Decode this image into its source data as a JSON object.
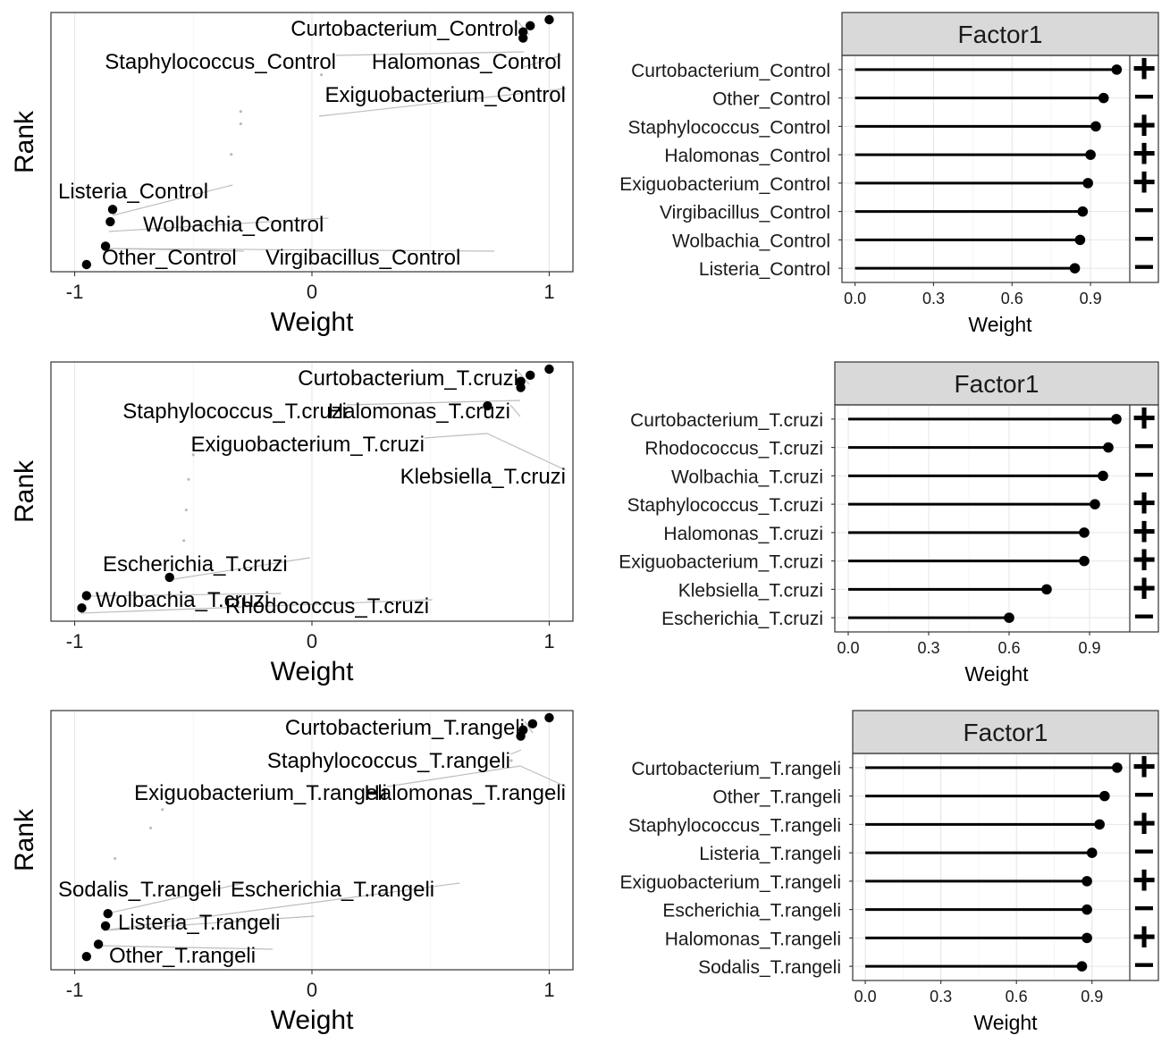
{
  "chart_data": [
    {
      "type": "scatter",
      "xlabel": "Weight",
      "ylabel": "Rank",
      "xlim": [
        -1.1,
        1.1
      ],
      "xticks": [
        "-1",
        "0",
        "1"
      ],
      "points": [
        {
          "weight": 1.0,
          "rank": 40
        },
        {
          "weight": 0.92,
          "rank": 39
        },
        {
          "weight": 0.89,
          "rank": 38
        },
        {
          "weight": 0.89,
          "rank": 37
        },
        {
          "weight": 0.04,
          "rank": 31
        },
        {
          "weight": -0.3,
          "rank": 25
        },
        {
          "weight": -0.3,
          "rank": 23
        },
        {
          "weight": -0.34,
          "rank": 18
        },
        {
          "weight": -0.84,
          "rank": 9
        },
        {
          "weight": -0.85,
          "rank": 7
        },
        {
          "weight": -0.87,
          "rank": 3
        },
        {
          "weight": -0.95,
          "rank": 0
        }
      ],
      "labels": [
        {
          "text": "Curtobacterium_Control",
          "weight": 0.92,
          "rank": 39
        },
        {
          "text": "Staphylococcus_Control",
          "weight": 0.89,
          "rank": 38
        },
        {
          "text": "Halomonas_Control",
          "weight": 0.89,
          "rank": 37
        },
        {
          "text": "Exiguobacterium_Control",
          "weight": 0.04,
          "rank": 31
        },
        {
          "text": "Listeria_Control",
          "weight": -0.84,
          "rank": 9
        },
        {
          "text": "Wolbachia_Control",
          "weight": -0.85,
          "rank": 7
        },
        {
          "text": "Other_Control",
          "weight": -0.87,
          "rank": 3
        },
        {
          "text": "Virgibacillus_Control",
          "weight": -0.87,
          "rank": 3
        }
      ]
    },
    {
      "type": "bar",
      "strip": "Factor1",
      "xlabel": "Weight",
      "xlim": [
        0,
        1.0
      ],
      "xticks": [
        0.0,
        0.3,
        0.6,
        0.9
      ],
      "xtick_labels": [
        "0.0",
        "0.3",
        "0.6",
        "0.9"
      ],
      "categories": [
        "Curtobacterium_Control",
        "Other_Control",
        "Staphylococcus_Control",
        "Halomonas_Control",
        "Exiguobacterium_Control",
        "Virgibacillus_Control",
        "Wolbachia_Control",
        "Listeria_Control"
      ],
      "values": [
        1.0,
        0.95,
        0.92,
        0.9,
        0.89,
        0.87,
        0.86,
        0.84
      ],
      "signs": [
        "+",
        "−",
        "+",
        "+",
        "+",
        "−",
        "−",
        "−"
      ]
    },
    {
      "type": "scatter",
      "xlabel": "Weight",
      "ylabel": "Rank",
      "xlim": [
        -1.1,
        1.1
      ],
      "xticks": [
        "-1",
        "0",
        "1"
      ],
      "points": [
        {
          "weight": 1.0,
          "rank": 40
        },
        {
          "weight": 0.92,
          "rank": 39
        },
        {
          "weight": 0.88,
          "rank": 38
        },
        {
          "weight": 0.88,
          "rank": 37
        },
        {
          "weight": 0.74,
          "rank": 34
        },
        {
          "weight": -0.5,
          "rank": 26
        },
        {
          "weight": -0.52,
          "rank": 22
        },
        {
          "weight": -0.53,
          "rank": 17
        },
        {
          "weight": -0.54,
          "rank": 12
        },
        {
          "weight": -0.6,
          "rank": 6
        },
        {
          "weight": -0.95,
          "rank": 3
        },
        {
          "weight": -0.97,
          "rank": 1
        }
      ],
      "labels": [
        {
          "text": "Curtobacterium_T.cruzi",
          "weight": 0.92,
          "rank": 39
        },
        {
          "text": "Staphylococcus_T.cruzi",
          "weight": 0.88,
          "rank": 38
        },
        {
          "text": "Halomonas_T.cruzi",
          "weight": 0.88,
          "rank": 37
        },
        {
          "text": "Exiguobacterium_T.cruzi",
          "weight": 0.74,
          "rank": 34
        },
        {
          "text": "Klebsiella_T.cruzi",
          "weight": 0.74,
          "rank": 34
        },
        {
          "text": "Escherichia_T.cruzi",
          "weight": -0.6,
          "rank": 6
        },
        {
          "text": "Wolbachia_T.cruzi",
          "weight": -0.95,
          "rank": 3
        },
        {
          "text": "Rhodococcus_T.cruzi",
          "weight": -0.97,
          "rank": 1
        }
      ]
    },
    {
      "type": "bar",
      "strip": "Factor1",
      "xlabel": "Weight",
      "xlim": [
        0,
        1.0
      ],
      "xticks": [
        0.0,
        0.3,
        0.6,
        0.9
      ],
      "xtick_labels": [
        "0.0",
        "0.3",
        "0.6",
        "0.9"
      ],
      "categories": [
        "Curtobacterium_T.cruzi",
        "Rhodococcus_T.cruzi",
        "Wolbachia_T.cruzi",
        "Staphylococcus_T.cruzi",
        "Halomonas_T.cruzi",
        "Exiguobacterium_T.cruzi",
        "Klebsiella_T.cruzi",
        "Escherichia_T.cruzi"
      ],
      "values": [
        1.0,
        0.97,
        0.95,
        0.92,
        0.88,
        0.88,
        0.74,
        0.6
      ],
      "signs": [
        "+",
        "−",
        "−",
        "+",
        "+",
        "+",
        "+",
        "−"
      ]
    },
    {
      "type": "scatter",
      "xlabel": "Weight",
      "ylabel": "Rank",
      "xlim": [
        -1.1,
        1.1
      ],
      "xticks": [
        "-1",
        "0",
        "1"
      ],
      "points": [
        {
          "weight": 1.0,
          "rank": 40
        },
        {
          "weight": 0.93,
          "rank": 39
        },
        {
          "weight": 0.89,
          "rank": 38
        },
        {
          "weight": 0.88,
          "rank": 37
        },
        {
          "weight": 0.84,
          "rank": 33
        },
        {
          "weight": -0.43,
          "rank": 27
        },
        {
          "weight": -0.63,
          "rank": 25
        },
        {
          "weight": -0.68,
          "rank": 22
        },
        {
          "weight": -0.83,
          "rank": 17
        },
        {
          "weight": -0.86,
          "rank": 8
        },
        {
          "weight": -0.87,
          "rank": 6
        },
        {
          "weight": -0.9,
          "rank": 3
        },
        {
          "weight": -0.95,
          "rank": 1
        }
      ],
      "labels": [
        {
          "text": "Curtobacterium_T.rangeli",
          "weight": 0.93,
          "rank": 39
        },
        {
          "text": "Staphylococcus_T.rangeli",
          "weight": 0.89,
          "rank": 38
        },
        {
          "text": "Exiguobacterium_T.rangeli",
          "weight": 0.88,
          "rank": 37
        },
        {
          "text": "Halomonas_T.rangeli",
          "weight": 0.88,
          "rank": 37
        },
        {
          "text": "Sodalis_T.rangeli",
          "weight": -0.86,
          "rank": 8
        },
        {
          "text": "Escherichia_T.rangeli",
          "weight": -0.87,
          "rank": 6
        },
        {
          "text": "Listeria_T.rangeli",
          "weight": -0.87,
          "rank": 6
        },
        {
          "text": "Other_T.rangeli",
          "weight": -0.9,
          "rank": 3
        }
      ]
    },
    {
      "type": "bar",
      "strip": "Factor1",
      "xlabel": "Weight",
      "xlim": [
        0,
        1.0
      ],
      "xticks": [
        0.0,
        0.3,
        0.6,
        0.9
      ],
      "xtick_labels": [
        "0.0",
        "0.3",
        "0.6",
        "0.9"
      ],
      "categories": [
        "Curtobacterium_T.rangeli",
        "Other_T.rangeli",
        "Staphylococcus_T.rangeli",
        "Listeria_T.rangeli",
        "Exiguobacterium_T.rangeli",
        "Escherichia_T.rangeli",
        "Halomonas_T.rangeli",
        "Sodalis_T.rangeli"
      ],
      "values": [
        1.0,
        0.95,
        0.93,
        0.9,
        0.88,
        0.88,
        0.88,
        0.86
      ],
      "signs": [
        "+",
        "−",
        "+",
        "−",
        "+",
        "−",
        "+",
        "−"
      ]
    }
  ]
}
